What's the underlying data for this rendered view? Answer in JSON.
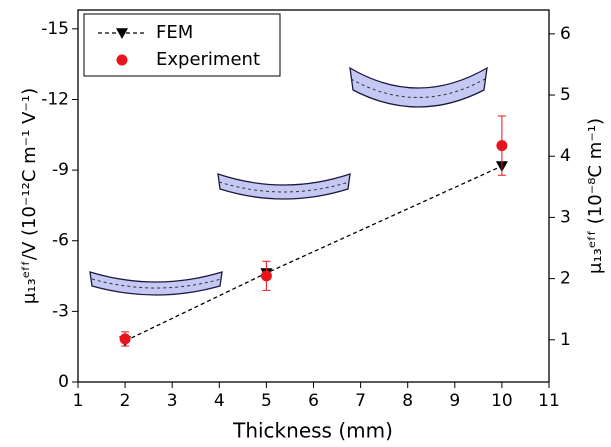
{
  "chart_data": {
    "type": "line",
    "x_label": "Thickness (mm)",
    "y_label": "μ₁₃ᵉᶠᶠ/V (10⁻¹²C m⁻¹ V⁻¹)",
    "y2_label": "μ₁₃ᵉᶠᶠ (10⁻⁸C m⁻¹)",
    "x": [
      2,
      5,
      10
    ],
    "xlim": [
      1,
      11
    ],
    "xticks": [
      1,
      2,
      3,
      4,
      5,
      6,
      7,
      8,
      9,
      10,
      11
    ],
    "ylim": [
      0,
      -15.8
    ],
    "yticks": [
      0,
      -3,
      -6,
      -9,
      -12,
      -15
    ],
    "y2lim": [
      0.31,
      6.39
    ],
    "y2ticks": [
      1,
      2,
      3,
      4,
      5,
      6
    ],
    "y_color": "#e8141c",
    "legend": "top-left",
    "series": [
      {
        "name": "FEM",
        "color": "#000000",
        "axis": "y2",
        "values": [
          0.98,
          2.09,
          3.84
        ]
      },
      {
        "name": "Experiment",
        "color": "#e8141c",
        "axis": "y",
        "values": [
          -1.83,
          -4.51,
          -10.04
        ],
        "errors": [
          0.3,
          0.62,
          1.26
        ]
      }
    ]
  }
}
